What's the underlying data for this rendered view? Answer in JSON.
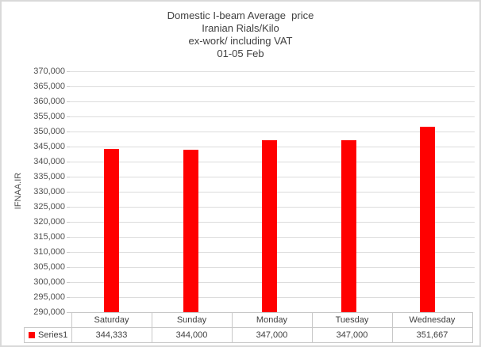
{
  "frame": {
    "background": "#ffffff",
    "border_color": "#d9d9d9"
  },
  "chart_data": {
    "type": "bar",
    "title": "Domestic I-beam Average price Iranian Rials/Kilo ex-work/ including VAT 01-05 Feb",
    "title_lines": [
      "Domestic I-beam Average  price",
      "Iranian Rials/Kilo",
      "ex-work/ including VAT",
      "01-05 Feb"
    ],
    "xlabel": "",
    "ylabel": "IFNAA.IR",
    "categories": [
      "Saturday",
      "Sunday",
      "Monday",
      "Tuesday",
      "Wednesday"
    ],
    "series": [
      {
        "name": "Series1",
        "values": [
          344333,
          344000,
          347000,
          347000,
          351667
        ],
        "color": "#ff0000"
      }
    ],
    "ylim": [
      290000,
      370000
    ],
    "ytick_step": 5000,
    "ytick_labels": [
      "370,000",
      "365,000",
      "360,000",
      "355,000",
      "350,000",
      "345,000",
      "340,000",
      "335,000",
      "330,000",
      "325,000",
      "320,000",
      "315,000",
      "310,000",
      "305,000",
      "300,000",
      "295,000",
      "290,000"
    ],
    "grid": true,
    "gridline_color": "#dcdcdc",
    "legend_position": "bottom-data-table",
    "text_color": "#404040"
  }
}
